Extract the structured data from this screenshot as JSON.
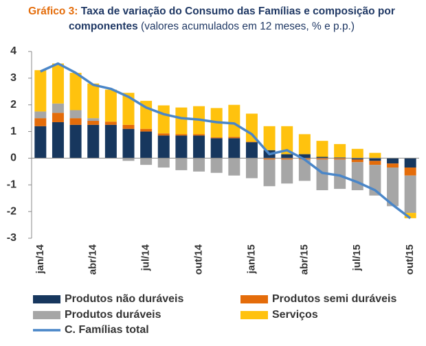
{
  "chart_data": {
    "type": "bar",
    "stacked": true,
    "title_label": "Gráfico 3:",
    "title": "Taxa de variação do Consumo das Famílias e composição por componentes",
    "subtitle": "(valores acumulados em 12 meses, % e p.p.)",
    "categories": [
      "jan/14",
      null,
      null,
      "abr/14",
      null,
      null,
      "jul/14",
      null,
      null,
      "out/14",
      null,
      null,
      "jan/15",
      null,
      null,
      "abr/15",
      null,
      null,
      "jul/15",
      null,
      null,
      "out/15"
    ],
    "ylim": [
      -3,
      4
    ],
    "yticks": [
      -3,
      -2,
      -1,
      0,
      1,
      2,
      3,
      4
    ],
    "series": [
      {
        "name": "Produtos não duráveis",
        "color": "#17375e",
        "values": [
          1.2,
          1.35,
          1.25,
          1.25,
          1.25,
          1.1,
          1.0,
          0.85,
          0.85,
          0.85,
          0.75,
          0.75,
          0.6,
          0.3,
          0.15,
          0.15,
          0.05,
          0.03,
          -0.05,
          -0.1,
          -0.2,
          -0.35
        ]
      },
      {
        "name": "Produtos semi duráveis",
        "color": "#e46c0a",
        "values": [
          0.3,
          0.35,
          0.25,
          0.15,
          0.12,
          0.15,
          0.1,
          0.08,
          0.05,
          0.05,
          0.03,
          0.05,
          0.02,
          -0.05,
          -0.05,
          -0.05,
          -0.05,
          -0.05,
          -0.1,
          -0.15,
          -0.15,
          -0.3
        ]
      },
      {
        "name": "Produtos duráveis",
        "color": "#a6a6a6",
        "values": [
          0.25,
          0.35,
          0.3,
          0.1,
          0.0,
          -0.1,
          -0.25,
          -0.35,
          -0.45,
          -0.5,
          -0.55,
          -0.65,
          -0.75,
          -1.0,
          -0.9,
          -0.8,
          -1.15,
          -1.1,
          -1.05,
          -1.15,
          -1.45,
          -1.4
        ]
      },
      {
        "name": "Serviços",
        "color": "#ffc20e",
        "values": [
          1.55,
          1.5,
          1.4,
          1.3,
          1.2,
          1.2,
          1.05,
          1.05,
          1.0,
          1.05,
          1.1,
          1.2,
          1.05,
          0.9,
          1.05,
          0.75,
          0.6,
          0.5,
          0.35,
          0.2,
          0.0,
          -0.2
        ]
      },
      {
        "name": "C. Famílias total",
        "type": "line",
        "color": "#4a86c8",
        "values": [
          3.25,
          3.55,
          3.2,
          2.75,
          2.6,
          2.3,
          1.9,
          1.65,
          1.5,
          1.45,
          1.35,
          1.3,
          0.9,
          0.15,
          0.3,
          -0.05,
          -0.55,
          -0.65,
          -0.9,
          -1.2,
          -1.75,
          -2.25
        ]
      }
    ]
  }
}
